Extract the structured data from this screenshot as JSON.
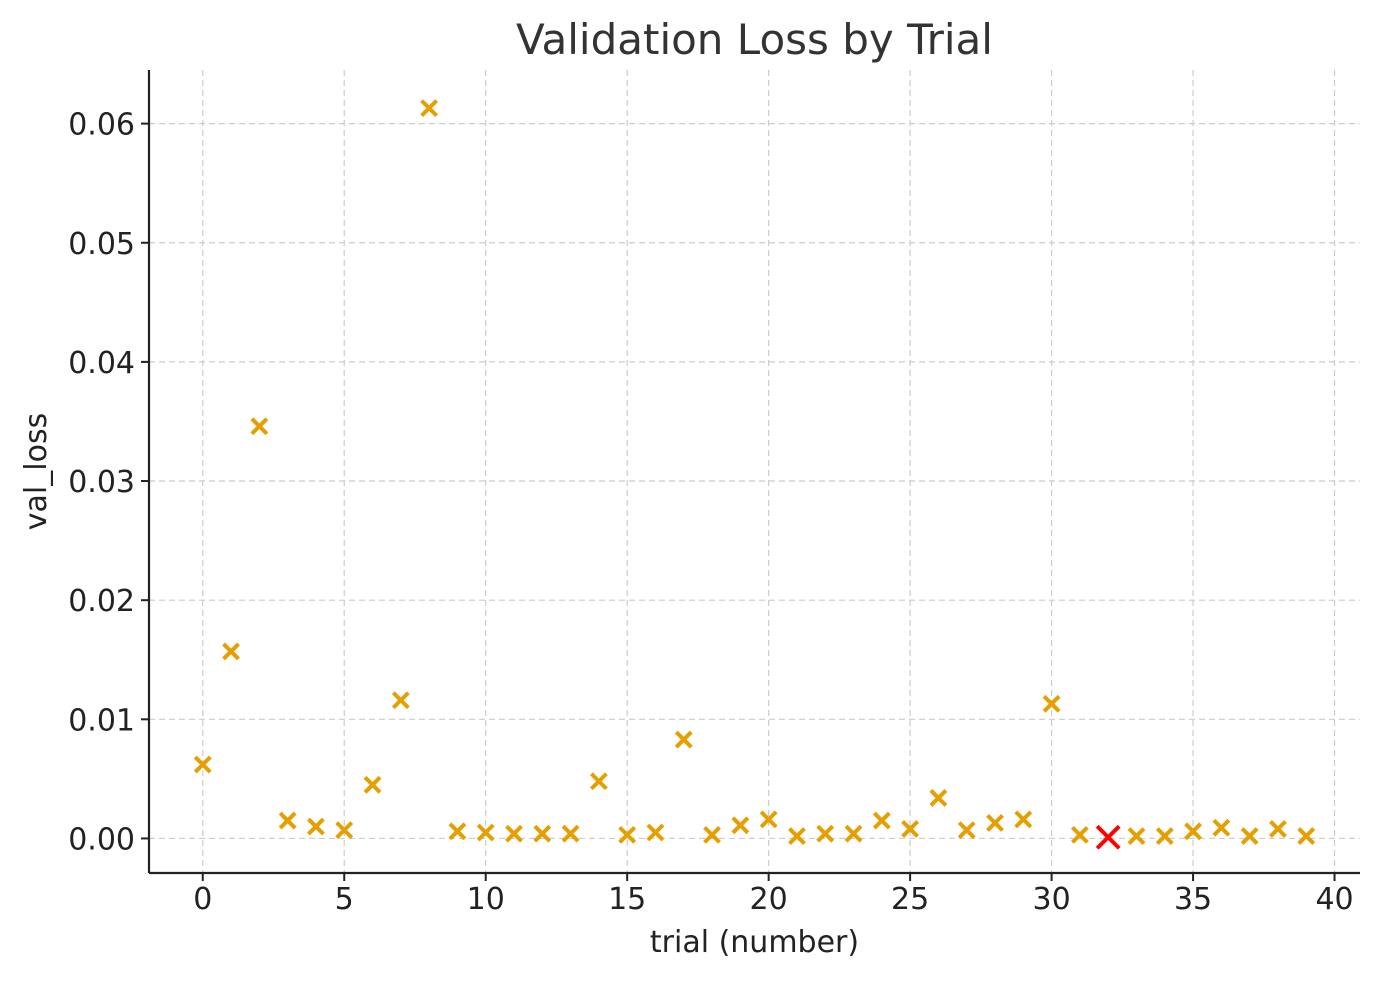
{
  "chart_data": {
    "type": "scatter",
    "title": "Validation Loss by Trial",
    "xlabel": "trial (number)",
    "ylabel": "val_loss",
    "xlim": [
      -1.9,
      40.9
    ],
    "ylim": [
      -0.0029,
      0.0645
    ],
    "xticks": [
      0,
      5,
      10,
      15,
      20,
      25,
      30,
      35,
      40
    ],
    "yticks": [
      0.0,
      0.01,
      0.02,
      0.03,
      0.04,
      0.05,
      0.06
    ],
    "xtick_labels": [
      "0",
      "5",
      "10",
      "15",
      "20",
      "25",
      "30",
      "35",
      "40"
    ],
    "ytick_labels": [
      "0.00",
      "0.01",
      "0.02",
      "0.03",
      "0.04",
      "0.05",
      "0.06"
    ],
    "grid": true,
    "marker": "x",
    "colors": {
      "points": "#E69F00",
      "best": "#FF0000"
    },
    "points": [
      {
        "x": 0,
        "y": 0.0062
      },
      {
        "x": 1,
        "y": 0.0157
      },
      {
        "x": 2,
        "y": 0.0346
      },
      {
        "x": 3,
        "y": 0.0015
      },
      {
        "x": 4,
        "y": 0.001
      },
      {
        "x": 5,
        "y": 0.0007
      },
      {
        "x": 6,
        "y": 0.0045
      },
      {
        "x": 7,
        "y": 0.0116
      },
      {
        "x": 8,
        "y": 0.0613
      },
      {
        "x": 9,
        "y": 0.0006
      },
      {
        "x": 10,
        "y": 0.0005
      },
      {
        "x": 11,
        "y": 0.0004
      },
      {
        "x": 12,
        "y": 0.0004
      },
      {
        "x": 13,
        "y": 0.0004
      },
      {
        "x": 14,
        "y": 0.0048
      },
      {
        "x": 15,
        "y": 0.0003
      },
      {
        "x": 16,
        "y": 0.0005
      },
      {
        "x": 17,
        "y": 0.0083
      },
      {
        "x": 18,
        "y": 0.0003
      },
      {
        "x": 19,
        "y": 0.0011
      },
      {
        "x": 20,
        "y": 0.0016
      },
      {
        "x": 21,
        "y": 0.0002
      },
      {
        "x": 22,
        "y": 0.0004
      },
      {
        "x": 23,
        "y": 0.0004
      },
      {
        "x": 24,
        "y": 0.0015
      },
      {
        "x": 25,
        "y": 0.0008
      },
      {
        "x": 26,
        "y": 0.0034
      },
      {
        "x": 27,
        "y": 0.0007
      },
      {
        "x": 28,
        "y": 0.0013
      },
      {
        "x": 29,
        "y": 0.0016
      },
      {
        "x": 30,
        "y": 0.0113
      },
      {
        "x": 31,
        "y": 0.0003
      },
      {
        "x": 33,
        "y": 0.0002
      },
      {
        "x": 34,
        "y": 0.0002
      },
      {
        "x": 35,
        "y": 0.0006
      },
      {
        "x": 36,
        "y": 0.0009
      },
      {
        "x": 37,
        "y": 0.0002
      },
      {
        "x": 38,
        "y": 0.0008
      },
      {
        "x": 39,
        "y": 0.0002
      }
    ],
    "best_point": {
      "x": 32,
      "y": 0.0001
    }
  }
}
